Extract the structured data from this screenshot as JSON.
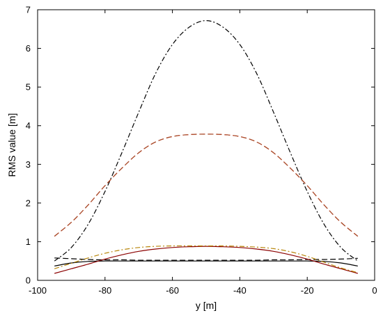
{
  "chart_data": {
    "type": "line",
    "title": "",
    "xlabel": "y [m]",
    "ylabel": "RMS value [m]",
    "xlim": [
      -100,
      0
    ],
    "ylim": [
      0,
      7
    ],
    "xticks": [
      -100,
      -80,
      -60,
      -40,
      -20,
      0
    ],
    "yticks": [
      0,
      1,
      2,
      3,
      4,
      5,
      6,
      7
    ],
    "grid": false,
    "legend": "none",
    "series": [
      {
        "color": "#000000",
        "dash": "dashdot",
        "x": [
          -95,
          -90,
          -85,
          -80,
          -75,
          -70,
          -65,
          -60,
          -55,
          -50,
          -45,
          -40,
          -35,
          -30,
          -25,
          -20,
          -15,
          -10,
          -5
        ],
        "y": [
          0.5,
          0.85,
          1.45,
          2.3,
          3.3,
          4.35,
          5.35,
          6.1,
          6.55,
          6.72,
          6.55,
          6.1,
          5.35,
          4.35,
          3.3,
          2.3,
          1.45,
          0.85,
          0.5
        ]
      },
      {
        "color": "#ff0000",
        "dash": "dashed",
        "x": [
          -95,
          -90,
          -85,
          -80,
          -75,
          -70,
          -65,
          -60,
          -55,
          -50,
          -45,
          -40,
          -35,
          -30,
          -25,
          -20,
          -15,
          -10,
          -5
        ],
        "y": [
          1.14,
          1.5,
          1.95,
          2.45,
          2.9,
          3.3,
          3.58,
          3.72,
          3.77,
          3.78,
          3.77,
          3.72,
          3.58,
          3.3,
          2.9,
          2.45,
          1.95,
          1.5,
          1.14
        ]
      },
      {
        "color": "#a0522d",
        "dash": "dashed",
        "x": [
          -95,
          -90,
          -85,
          -80,
          -75,
          -70,
          -65,
          -60,
          -55,
          -50,
          -45,
          -40,
          -35,
          -30,
          -25,
          -20,
          -15,
          -10,
          -5
        ],
        "y": [
          1.14,
          1.5,
          1.95,
          2.45,
          2.9,
          3.3,
          3.58,
          3.72,
          3.77,
          3.78,
          3.77,
          3.72,
          3.58,
          3.3,
          2.9,
          2.45,
          1.95,
          1.5,
          1.14
        ]
      },
      {
        "color": "#000000",
        "dash": "solid",
        "x": [
          -95,
          -90,
          -85,
          -80,
          -75,
          -70,
          -65,
          -60,
          -55,
          -50,
          -45,
          -40,
          -35,
          -30,
          -25,
          -20,
          -15,
          -10,
          -5
        ],
        "y": [
          0.37,
          0.45,
          0.49,
          0.5,
          0.5,
          0.5,
          0.5,
          0.5,
          0.5,
          0.5,
          0.5,
          0.5,
          0.5,
          0.5,
          0.5,
          0.5,
          0.49,
          0.45,
          0.37
        ]
      },
      {
        "color": "#000000",
        "dash": "dashed",
        "x": [
          -95,
          -90,
          -85,
          -80,
          -75,
          -70,
          -65,
          -60,
          -55,
          -50,
          -45,
          -40,
          -35,
          -30,
          -25,
          -20,
          -15,
          -10,
          -5
        ],
        "y": [
          0.58,
          0.56,
          0.54,
          0.53,
          0.53,
          0.52,
          0.52,
          0.52,
          0.52,
          0.52,
          0.52,
          0.52,
          0.52,
          0.53,
          0.53,
          0.54,
          0.54,
          0.55,
          0.57
        ]
      },
      {
        "color": "#8b0000",
        "dash": "solid",
        "x": [
          -95,
          -90,
          -85,
          -80,
          -75,
          -70,
          -65,
          -60,
          -55,
          -50,
          -45,
          -40,
          -35,
          -30,
          -25,
          -20,
          -15,
          -10,
          -5
        ],
        "y": [
          0.18,
          0.3,
          0.42,
          0.55,
          0.66,
          0.75,
          0.81,
          0.85,
          0.87,
          0.88,
          0.87,
          0.85,
          0.81,
          0.75,
          0.66,
          0.55,
          0.42,
          0.3,
          0.18
        ]
      },
      {
        "color": "#b8860b",
        "dash": "dashdot",
        "x": [
          -95,
          -90,
          -85,
          -80,
          -75,
          -70,
          -65,
          -60,
          -55,
          -50,
          -45,
          -40,
          -35,
          -30,
          -25,
          -20,
          -15,
          -10,
          -5
        ],
        "y": [
          0.3,
          0.44,
          0.58,
          0.7,
          0.79,
          0.85,
          0.88,
          0.89,
          0.89,
          0.89,
          0.89,
          0.88,
          0.86,
          0.82,
          0.74,
          0.62,
          0.47,
          0.32,
          0.2
        ]
      }
    ]
  }
}
